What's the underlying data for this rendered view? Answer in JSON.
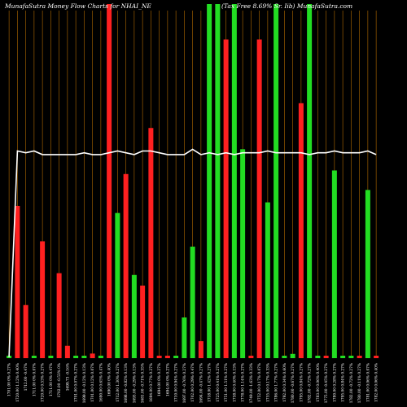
{
  "chart_data": {
    "type": "bar",
    "title_left": "MunafaSutra  Money Flow  Charts for NHAI_NE",
    "title_right": "(Tax Free 8.69% Sr. Iib) MunafaSutra.com",
    "xlabel": "",
    "ylabel": "",
    "ylim": [
      0,
      100
    ],
    "grid": true,
    "colors": {
      "background": "#000000",
      "up": "#22dd22",
      "down": "#ff2020",
      "grid": "#b36b00",
      "line": "#ffffff",
      "text": "#ffffff"
    },
    "categories": [
      "1701.00 0% 0.27%",
      "1720.00 1.12% 0.40%",
      "1712.00 -0.47%",
      "1711.00 0% 0.07%",
      "1720.00 0.53% 0.27%",
      "1711.00 0% 0.47%",
      "1702.00 -0.53% 0%",
      "1699.73 -0.16%",
      "1701.00 0.07% 0.27%",
      "1699.00 -0.12% 0.13%",
      "1701.00 0.12% 0.07%",
      "1690.00 0.65% 0.47%",
      "1690.00 0% 0.40%",
      "1712.00 1.30% 0.27%",
      "1698.00 -0.82% 0.13%",
      "1693.00 -0.29% 0.13%",
      "1681.00 -0.71% 0.35%",
      "1694.00 0.77% 0.27%",
      "1694.00 0% 0.27%",
      "1694.00 0% 0.27%",
      "1710.00 0.94% 0.27%",
      "1697.00 -0.76% 0.27%",
      "1702.00 0.29% 0.47%",
      "1694.00 -0.47% 0.27%",
      "1718.00 1.42% 0.27%",
      "1725.00 0.41% 0.27%",
      "1751.00 1.51% 0.27%",
      "1758.00 0.40% 0.13%",
      "1778.00 1.14% 0.27%",
      "1749.00 -1.63% 0.33%",
      "1752.00 0.17% 0.07%",
      "1755.00 0.17% 0.33%",
      "1786.00 1.77% 0.27%",
      "1792.00 0.34% 0.60%",
      "1780.00 -0.67% 0.27%",
      "1795.00 0.84% 0.27%",
      "1782.00 -0.72% 0.27%",
      "1783.00 0.06% 0.40%",
      "1775.00 -0.45% 0.27%",
      "1780.00 0.28% 0.27%",
      "1795.00 0.84% 0.27%",
      "1782.00 -0.72% 0.27%",
      "1780.00 -0.11% 0.27%",
      "1781.00 0.06% 0.07%",
      "1782.00 0.06% 0.40%"
    ],
    "bar_colors": [
      "up",
      "down",
      "down",
      "up",
      "down",
      "up",
      "down",
      "down",
      "up",
      "up",
      "down",
      "up",
      "down",
      "up",
      "down",
      "up",
      "down",
      "down",
      "down",
      "down",
      "up",
      "up",
      "up",
      "down",
      "up",
      "up",
      "down",
      "up",
      "up",
      "down",
      "down",
      "up",
      "up",
      "up",
      "up",
      "down",
      "up",
      "up",
      "down",
      "up",
      "up",
      "up",
      "down",
      "up",
      "down"
    ],
    "series": [
      {
        "values": [
          0.7,
          43.0,
          15.0,
          0.7,
          33.0,
          0.7,
          24.0,
          3.5,
          0.7,
          0.7,
          1.3,
          0.7,
          100,
          41.0,
          52.0,
          23.5,
          20.5,
          65.0,
          0.7,
          0.7,
          0.7,
          11.5,
          31.5,
          4.8,
          100,
          100,
          90.0,
          100,
          59.0,
          0.7,
          90.0,
          44.0,
          100,
          0.7,
          1.2,
          72.0,
          100,
          0.7,
          0.7,
          53.0,
          0.7,
          0.7,
          0.7,
          47.5,
          0.7
        ]
      },
      {
        "values": [
          0.3,
          58.5,
          58.0,
          58.5,
          57.5,
          57.5,
          57.5,
          57.5,
          57.5,
          58.0,
          57.5,
          57.5,
          58.0,
          58.5,
          58.0,
          57.5,
          58.5,
          58.5,
          58.0,
          57.5,
          57.5,
          57.5,
          59.0,
          57.5,
          58.0,
          57.5,
          58.0,
          57.5,
          58.0,
          58.0,
          58.0,
          58.5,
          58.0,
          58.0,
          58.0,
          58.0,
          57.5,
          58.0,
          58.0,
          58.5,
          58.0,
          58.0,
          58.0,
          58.5,
          57.5
        ]
      }
    ],
    "x_axis_labels_note": ""
  }
}
